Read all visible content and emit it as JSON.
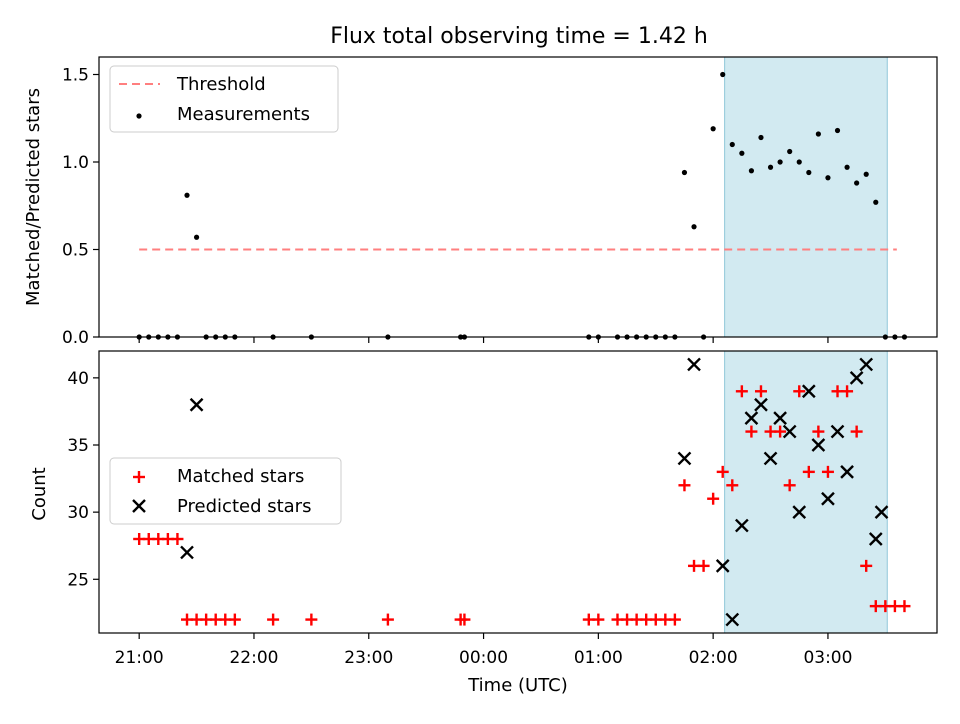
{
  "title": "Flux total observing time = 1.42 h",
  "colors": {
    "threshold": "#ff7f7f",
    "measurement": "#000000",
    "matched": "#ff0000",
    "predicted": "#000000",
    "shade": "#add8e6"
  },
  "chart_data": [
    {
      "type": "scatter",
      "panel": "top",
      "ylabel": "Matched/Predicted stars",
      "ylim": [
        0,
        1.6
      ],
      "yticks": [
        0.0,
        0.5,
        1.0,
        1.5
      ],
      "ytick_labels": [
        "0.0",
        "0.5",
        "1.0",
        "1.5"
      ],
      "xlim": [
        "20:39",
        "03:57"
      ],
      "shaded_region": [
        "02:06",
        "03:31"
      ],
      "threshold": {
        "name": "Threshold",
        "x": [
          "21:00",
          "03:36"
        ],
        "y": 0.5
      },
      "legend": {
        "placement": "upper left",
        "entries": [
          "Threshold",
          "Measurements"
        ]
      },
      "series": [
        {
          "name": "Measurements",
          "x": [
            "21:00",
            "21:05",
            "21:10",
            "21:15",
            "21:20",
            "21:25",
            "21:30",
            "21:35",
            "21:40",
            "21:45",
            "21:50",
            "22:10",
            "22:30",
            "23:10",
            "23:48",
            "23:50",
            "00:55",
            "01:00",
            "01:10",
            "01:15",
            "01:20",
            "01:25",
            "01:30",
            "01:35",
            "01:40",
            "01:45",
            "01:50",
            "01:55",
            "02:00",
            "02:05",
            "02:10",
            "02:15",
            "02:20",
            "02:25",
            "02:30",
            "02:35",
            "02:40",
            "02:45",
            "02:50",
            "02:55",
            "03:00",
            "03:05",
            "03:10",
            "03:15",
            "03:20",
            "03:25",
            "03:30",
            "03:35",
            "03:40"
          ],
          "y": [
            0,
            0,
            0,
            0,
            0,
            0.81,
            0.57,
            0,
            0,
            0,
            0,
            0,
            0,
            0,
            0,
            0,
            0,
            0,
            0,
            0,
            0,
            0,
            0,
            0,
            0,
            0.94,
            0.63,
            0,
            1.19,
            1.5,
            1.1,
            1.05,
            0.95,
            1.14,
            0.97,
            1.0,
            1.06,
            1.0,
            0.94,
            1.16,
            0.91,
            1.18,
            0.97,
            0.88,
            0.93,
            0.77,
            0,
            0,
            0
          ]
        }
      ]
    },
    {
      "type": "scatter",
      "panel": "bottom",
      "xlabel": "Time (UTC)",
      "ylabel": "Count",
      "ylim": [
        21,
        42
      ],
      "yticks": [
        25,
        30,
        35,
        40
      ],
      "ytick_labels": [
        "25",
        "30",
        "35",
        "40"
      ],
      "xlim": [
        "20:39",
        "03:57"
      ],
      "xticks": [
        "21:00",
        "22:00",
        "23:00",
        "00:00",
        "01:00",
        "02:00",
        "03:00"
      ],
      "xtick_labels": [
        "21:00",
        "22:00",
        "23:00",
        "00:00",
        "01:00",
        "02:00",
        "03:00"
      ],
      "shaded_region": [
        "02:06",
        "03:31"
      ],
      "legend": {
        "placement": "center left",
        "entries": [
          "Matched stars",
          "Predicted stars"
        ]
      },
      "series": [
        {
          "name": "Matched stars",
          "marker": "+",
          "x": [
            "21:00",
            "21:05",
            "21:10",
            "21:15",
            "21:20",
            "21:25",
            "21:30",
            "21:35",
            "21:40",
            "21:45",
            "21:50",
            "22:10",
            "22:30",
            "23:10",
            "23:48",
            "23:50",
            "00:55",
            "01:00",
            "01:10",
            "01:15",
            "01:20",
            "01:25",
            "01:30",
            "01:35",
            "01:40",
            "01:45",
            "01:50",
            "01:55",
            "02:00",
            "02:05",
            "02:10",
            "02:15",
            "02:20",
            "02:25",
            "02:30",
            "02:35",
            "02:40",
            "02:45",
            "02:50",
            "02:55",
            "03:00",
            "03:05",
            "03:10",
            "03:15",
            "03:20",
            "03:25",
            "03:30",
            "03:35",
            "03:40"
          ],
          "y": [
            28,
            28,
            28,
            28,
            28,
            22,
            22,
            22,
            22,
            22,
            22,
            22,
            22,
            22,
            22,
            22,
            22,
            22,
            22,
            22,
            22,
            22,
            22,
            22,
            22,
            32,
            26,
            26,
            31,
            33,
            32,
            39,
            36,
            39,
            36,
            36,
            32,
            39,
            33,
            36,
            33,
            39,
            39,
            36,
            26,
            23,
            23,
            23,
            23
          ]
        },
        {
          "name": "Predicted stars",
          "marker": "x",
          "x": [
            "21:25",
            "21:30",
            "01:45",
            "01:50",
            "02:05",
            "02:10",
            "02:15",
            "02:20",
            "02:25",
            "02:30",
            "02:35",
            "02:40",
            "02:45",
            "02:50",
            "02:55",
            "03:00",
            "03:05",
            "03:10",
            "03:15",
            "03:20",
            "03:25"
          ],
          "y": [
            27,
            38,
            34,
            41,
            26,
            22,
            29,
            37,
            38,
            34,
            37,
            36,
            30,
            39,
            35,
            31,
            36,
            33,
            40,
            41,
            28
          ]
        },
        {
          "name": "Predicted stars",
          "marker": "x",
          "x": [
            "03:28"
          ],
          "y": [
            30
          ]
        }
      ]
    }
  ]
}
